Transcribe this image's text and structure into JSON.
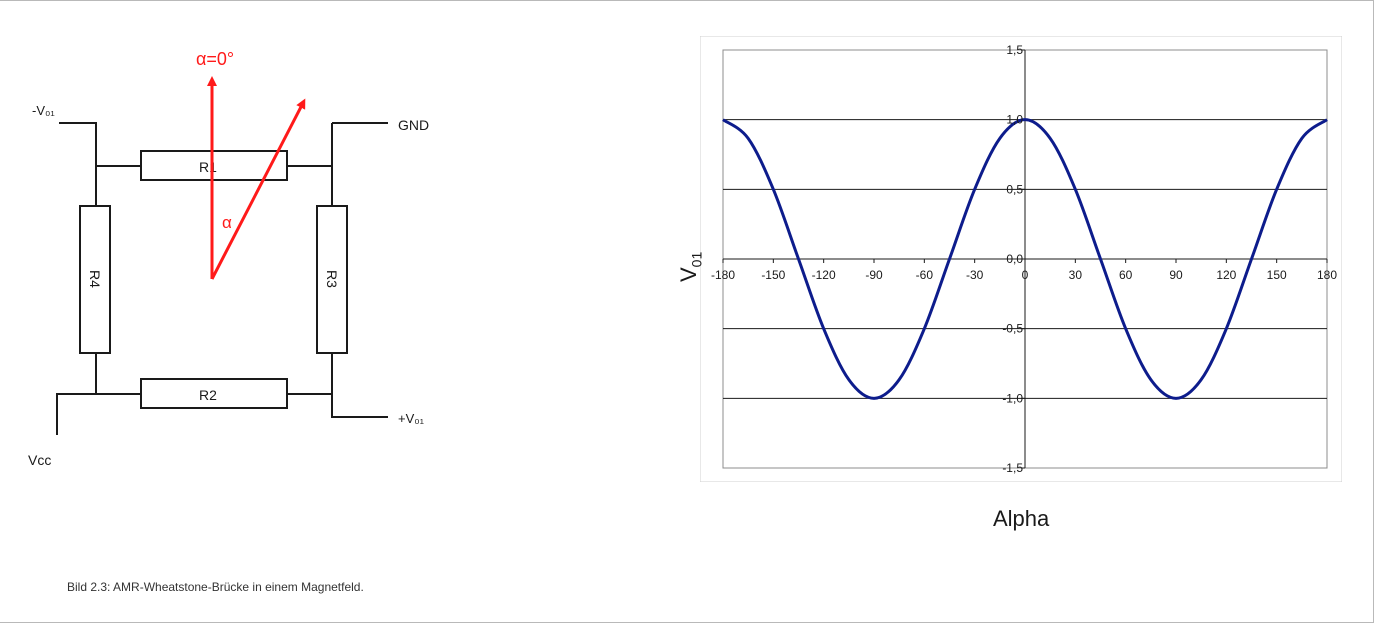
{
  "circuit": {
    "angle_zero_label": "α=0°",
    "angle_label": "α",
    "terminals": {
      "neg_v01": "-V₀₁",
      "gnd": "GND",
      "pos_v01": "+V₀₁",
      "vcc": "Vcc"
    },
    "resistors": {
      "r1": "R1",
      "r2": "R2",
      "r3": "R3",
      "r4": "R4"
    },
    "colors": {
      "arrow": "#ff1a1a",
      "wire": "#1a1a1a"
    }
  },
  "chart_data": {
    "type": "line",
    "xlabel": "Alpha",
    "ylabel": "V",
    "ylabel_sub": "01",
    "xlim": [
      -180,
      180
    ],
    "ylim": [
      -1.5,
      1.5
    ],
    "x_ticks": [
      "-180",
      "-150",
      "-120",
      "-90",
      "-60",
      "-30",
      "0",
      "30",
      "60",
      "90",
      "120",
      "150",
      "180"
    ],
    "y_ticks": [
      "1,5",
      "1,0",
      "0,5",
      "0,0",
      "-0,5",
      "-1,0",
      "-1,5"
    ],
    "grid": "horizontal",
    "series": [
      {
        "color": "#0d1c8c",
        "x": [
          -180,
          -165,
          -150,
          -135,
          -120,
          -105,
          -90,
          -75,
          -60,
          -45,
          -30,
          -15,
          0,
          15,
          30,
          45,
          60,
          75,
          90,
          105,
          120,
          135,
          150,
          165,
          180
        ],
        "y": [
          1.0,
          0.866,
          0.5,
          0.0,
          -0.5,
          -0.866,
          -1.0,
          -0.866,
          -0.5,
          0.0,
          0.5,
          0.866,
          1.0,
          0.866,
          0.5,
          0.0,
          -0.5,
          -0.866,
          -1.0,
          -0.866,
          -0.5,
          0.0,
          0.5,
          0.866,
          1.0
        ]
      }
    ]
  },
  "caption": "Bild 2.3: AMR-Wheatstone-Brücke in einem Magnetfeld."
}
